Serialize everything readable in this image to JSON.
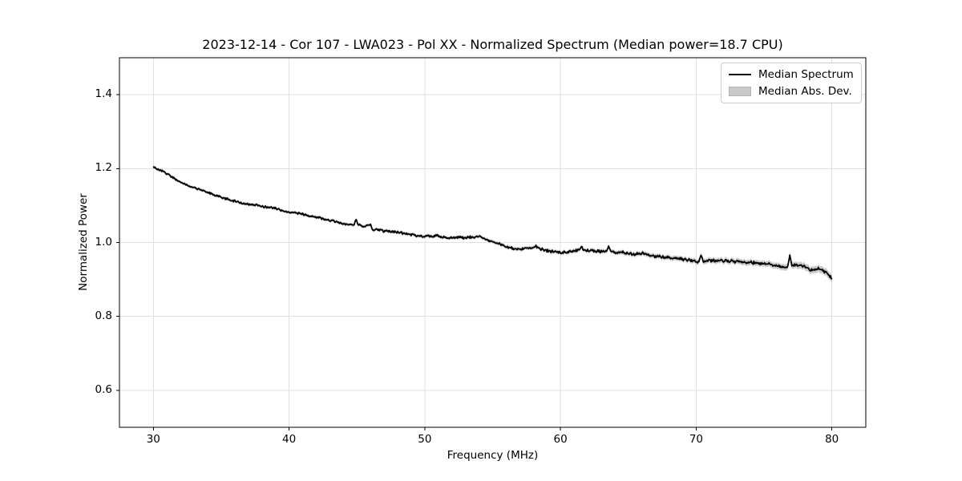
{
  "colors": {
    "line": "#000000",
    "band": "#c9c9c9",
    "grid": "#e0e0e0",
    "spine": "#000000",
    "background": "#ffffff",
    "text": "#000000",
    "legend_border": "#cccccc"
  },
  "chart_data": {
    "type": "line",
    "title": "2023-12-14 - Cor 107 - LWA023 - Pol XX - Normalized Spectrum (Median power=18.7 CPU)",
    "xlabel": "Frequency (MHz)",
    "ylabel": "Normalized Power",
    "xlim": [
      27.5,
      82.5
    ],
    "ylim": [
      0.5,
      1.5
    ],
    "xticks": [
      30,
      40,
      50,
      60,
      70,
      80
    ],
    "yticks": [
      0.6,
      0.8,
      1.0,
      1.2,
      1.4
    ],
    "grid": true,
    "legend_position": "upper right",
    "noise_amplitude": 0.0032,
    "series": [
      {
        "name": "Median Spectrum",
        "type": "line",
        "color": "#000000",
        "x": [
          30,
          30.2,
          30.5,
          31,
          31.5,
          32,
          32.5,
          33,
          33.5,
          34,
          34.5,
          35,
          35.5,
          36,
          36.5,
          37,
          37.5,
          38,
          38.5,
          39,
          39.5,
          40,
          40.5,
          41,
          41.5,
          42,
          42.5,
          43,
          43.5,
          44,
          44.5,
          44.8,
          44.95,
          45.1,
          45.5,
          46,
          46.2,
          46.5,
          47,
          47.5,
          48,
          48.5,
          49,
          49.5,
          50,
          50.5,
          51,
          51.5,
          52,
          52.5,
          53,
          53.5,
          54,
          54.5,
          55,
          55.5,
          56,
          56.5,
          57,
          57.5,
          58,
          58.2,
          58.5,
          59,
          59.5,
          60,
          60.5,
          61,
          61.4,
          61.55,
          61.7,
          62,
          62.5,
          63,
          63.4,
          63.55,
          63.7,
          64,
          64.5,
          65,
          65.5,
          66,
          66.5,
          67,
          67.5,
          68,
          68.5,
          69,
          69.5,
          70,
          70.2,
          70.35,
          70.5,
          71,
          71.5,
          72,
          72.5,
          73,
          73.5,
          74,
          74.5,
          75,
          75.5,
          76,
          76.5,
          76.75,
          76.9,
          77.05,
          77.5,
          78,
          78.5,
          79,
          79.5,
          79.8,
          80
        ],
        "y": [
          1.205,
          1.2,
          1.196,
          1.186,
          1.174,
          1.163,
          1.155,
          1.148,
          1.142,
          1.136,
          1.128,
          1.122,
          1.117,
          1.112,
          1.107,
          1.103,
          1.101,
          1.098,
          1.095,
          1.092,
          1.086,
          1.082,
          1.08,
          1.077,
          1.072,
          1.068,
          1.064,
          1.06,
          1.055,
          1.051,
          1.049,
          1.048,
          1.062,
          1.048,
          1.043,
          1.047,
          1.032,
          1.036,
          1.031,
          1.03,
          1.028,
          1.024,
          1.021,
          1.018,
          1.016,
          1.017,
          1.018,
          1.014,
          1.012,
          1.014,
          1.013,
          1.014,
          1.016,
          1.009,
          1.002,
          0.995,
          0.988,
          0.984,
          0.982,
          0.984,
          0.986,
          0.991,
          0.983,
          0.978,
          0.975,
          0.972,
          0.974,
          0.977,
          0.98,
          0.989,
          0.98,
          0.979,
          0.977,
          0.975,
          0.977,
          0.992,
          0.977,
          0.974,
          0.973,
          0.97,
          0.968,
          0.971,
          0.966,
          0.963,
          0.961,
          0.959,
          0.957,
          0.955,
          0.952,
          0.949,
          0.948,
          0.967,
          0.95,
          0.951,
          0.95,
          0.951,
          0.95,
          0.949,
          0.947,
          0.946,
          0.945,
          0.943,
          0.94,
          0.937,
          0.932,
          0.934,
          0.966,
          0.94,
          0.938,
          0.934,
          0.926,
          0.93,
          0.921,
          0.912,
          0.901
        ]
      },
      {
        "name": "Median Abs. Dev.",
        "type": "band",
        "color": "#c9c9c9",
        "x": [
          30,
          40,
          50,
          60,
          65,
          70,
          75,
          80
        ],
        "halfwidth": [
          0.004,
          0.004,
          0.0045,
          0.005,
          0.006,
          0.007,
          0.008,
          0.01
        ]
      }
    ]
  }
}
